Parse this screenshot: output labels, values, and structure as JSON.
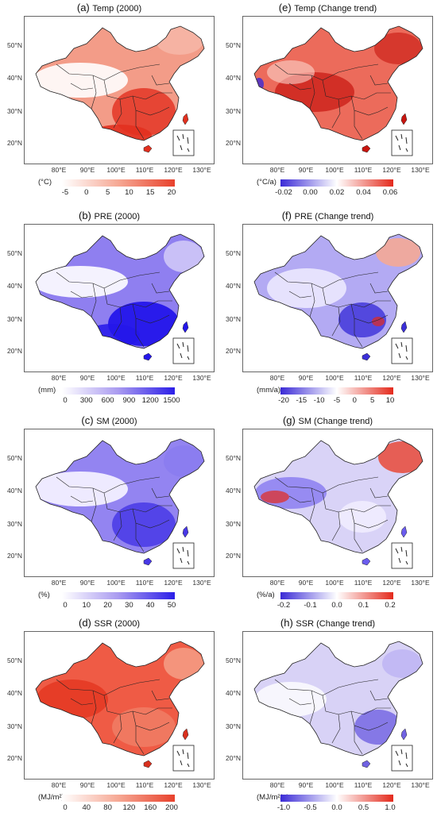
{
  "lat_ticks": [
    "50°N",
    "40°N",
    "30°N",
    "20°N"
  ],
  "lon_ticks": [
    "80°E",
    "90°E",
    "100°E",
    "110°E",
    "120°E",
    "130°E"
  ],
  "panels": [
    {
      "label": "(a)",
      "title": "Temp (2000)",
      "unit": "(°C)",
      "colorbar_ticks": [
        "-5",
        "0",
        "5",
        "10",
        "15",
        "20"
      ],
      "colors": [
        "#ffffff",
        "#f6a894",
        "#e8412c"
      ]
    },
    {
      "label": "(e)",
      "title": "Temp (Change trend)",
      "unit": "(°C/a)",
      "colorbar_ticks": [
        "-0.02",
        "0.00",
        "0.02",
        "0.04",
        "0.06"
      ],
      "colors": [
        "#3b2bd6",
        "#ffffff",
        "#e42a1c"
      ]
    },
    {
      "label": "(b)",
      "title": "PRE (2000)",
      "unit": "(mm)",
      "colorbar_ticks": [
        "0",
        "300",
        "600",
        "900",
        "1200",
        "1500"
      ],
      "colors": [
        "#ffffff",
        "#a99af0",
        "#2b1ee8"
      ]
    },
    {
      "label": "(f)",
      "title": "PRE (Change trend)",
      "unit": "(mm/a)",
      "colorbar_ticks": [
        "-20",
        "-15",
        "-10",
        "-5",
        "0",
        "5",
        "10"
      ],
      "colors": [
        "#3b2bd6",
        "#ffffff",
        "#e42a1c"
      ]
    },
    {
      "label": "(c)",
      "title": "SM (2000)",
      "unit": "(%)",
      "colorbar_ticks": [
        "0",
        "10",
        "20",
        "30",
        "40",
        "50"
      ],
      "colors": [
        "#ffffff",
        "#a99af0",
        "#2b1ee8"
      ]
    },
    {
      "label": "(g)",
      "title": "SM (Change trend)",
      "unit": "(%/a)",
      "colorbar_ticks": [
        "-0.2",
        "-0.1",
        "0.0",
        "0.1",
        "0.2"
      ],
      "colors": [
        "#3b2bd6",
        "#ffffff",
        "#e42a1c"
      ]
    },
    {
      "label": "(d)",
      "title": "SSR (2000)",
      "unit": "(MJ/m²)",
      "colorbar_ticks": [
        "0",
        "40",
        "80",
        "120",
        "160",
        "200"
      ],
      "colors": [
        "#ffffff",
        "#f6a894",
        "#e8412c"
      ]
    },
    {
      "label": "(h)",
      "title": "SSR (Change trend)",
      "unit": "(MJ/m²/a)",
      "colorbar_ticks": [
        "-1.0",
        "-0.5",
        "0.0",
        "0.5",
        "1.0"
      ],
      "colors": [
        "#3b2bd6",
        "#ffffff",
        "#e42a1c"
      ]
    }
  ]
}
